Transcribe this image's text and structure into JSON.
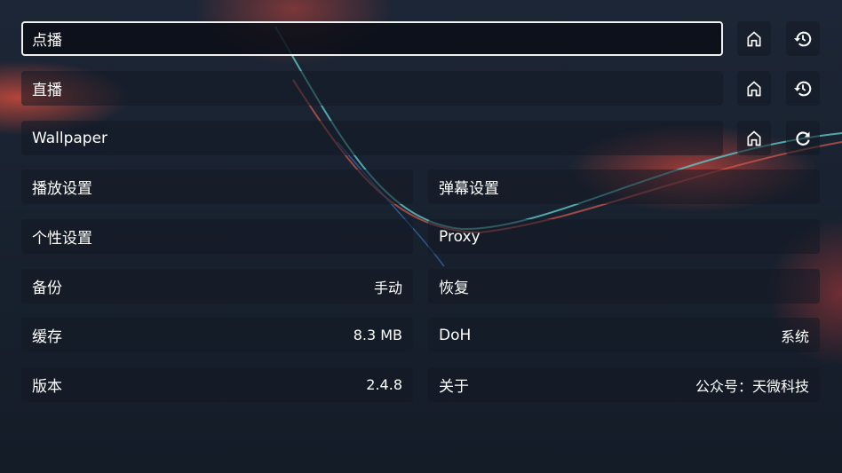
{
  "top_rows": [
    {
      "label": "点播",
      "home_icon": "home-icon",
      "action_icon": "history-icon"
    },
    {
      "label": "直播",
      "home_icon": "home-icon",
      "action_icon": "history-icon"
    },
    {
      "label": "Wallpaper",
      "home_icon": "home-icon",
      "action_icon": "refresh-icon"
    }
  ],
  "settings": {
    "playback": "播放设置",
    "danmaku": "弹幕设置",
    "personal": "个性设置",
    "proxy": "Proxy",
    "backup": "备份",
    "backup_value": "手动",
    "restore": "恢复",
    "cache": "缓存",
    "cache_value": "8.3 MB",
    "doh": "DoH",
    "doh_value": "系统",
    "version": "版本",
    "version_value": "2.4.8",
    "about": "关于",
    "about_value": "公众号：天微科技"
  }
}
